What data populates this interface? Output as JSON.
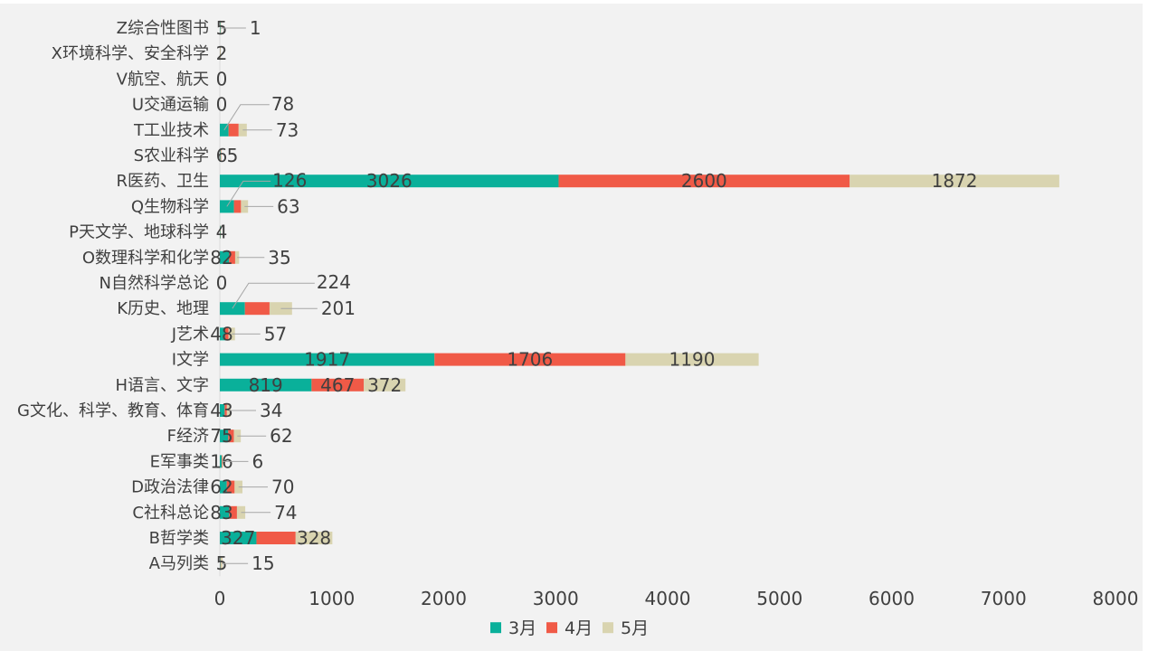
{
  "chart_data": {
    "type": "bar",
    "orientation": "horizontal",
    "stacked": true,
    "categories": [
      "A马列类",
      "B哲学类",
      "C社科总论",
      "D政治法律",
      "E军事类",
      "F经济",
      "G文化、科学、教育、体育",
      "H语言、文字",
      "I文学",
      "J艺术",
      "K历史、地理",
      "N自然科学总论",
      "O数理科学和化学",
      "P天文学、地球科学",
      "Q生物科学",
      "R医药、卫生",
      "S农业科学",
      "T工业技术",
      "U交通运输",
      "V航空、航天",
      "X环境科学、安全科学",
      "Z综合性图书"
    ],
    "series": [
      {
        "name": "3月",
        "color": "#0ab09a",
        "values": [
          5,
          327,
          83,
          62,
          16,
          75,
          43,
          819,
          1917,
          48,
          224,
          0,
          82,
          4,
          126,
          3026,
          6,
          78,
          0,
          0,
          2,
          5
        ]
      },
      {
        "name": "4月",
        "color": "#f05a47",
        "values": [
          5,
          350,
          70,
          70,
          6,
          50,
          20,
          467,
          1706,
          30,
          220,
          0,
          55,
          2,
          63,
          2600,
          5,
          90,
          0,
          0,
          1,
          1
        ]
      },
      {
        "name": "5月",
        "color": "#d9d4b0",
        "values": [
          15,
          328,
          74,
          70,
          6,
          62,
          34,
          372,
          1190,
          57,
          201,
          0,
          35,
          2,
          63,
          1872,
          3,
          73,
          0,
          0,
          1,
          1
        ]
      }
    ],
    "data_labels": [
      {
        "category": "A马列类",
        "labels": [
          {
            "text": "5",
            "series": 0
          },
          {
            "text": "15",
            "series": 2,
            "callout": true
          }
        ]
      },
      {
        "category": "B哲学类",
        "labels": [
          {
            "text": "327",
            "series": 0
          },
          {
            "text": "328",
            "series": 2
          }
        ]
      },
      {
        "category": "C社科总论",
        "labels": [
          {
            "text": "83",
            "series": 0
          },
          {
            "text": "74",
            "series": 2,
            "callout": true
          }
        ]
      },
      {
        "category": "D政治法律",
        "labels": [
          {
            "text": "62",
            "series": 0
          },
          {
            "text": "70",
            "series": 2,
            "callout": true
          }
        ]
      },
      {
        "category": "E军事类",
        "labels": [
          {
            "text": "16",
            "series": 0
          },
          {
            "text": "6",
            "series": 2,
            "callout": true
          }
        ]
      },
      {
        "category": "F经济",
        "labels": [
          {
            "text": "75",
            "series": 0
          },
          {
            "text": "62",
            "series": 2,
            "callout": true
          }
        ]
      },
      {
        "category": "G文化、科学、教育、体育",
        "labels": [
          {
            "text": "43",
            "series": 0
          },
          {
            "text": "34",
            "series": 2,
            "callout": true
          }
        ]
      },
      {
        "category": "H语言、文字",
        "labels": [
          {
            "text": "819",
            "series": 0
          },
          {
            "text": "467",
            "series": 1
          },
          {
            "text": "372",
            "series": 2
          }
        ]
      },
      {
        "category": "I文学",
        "labels": [
          {
            "text": "1917",
            "series": 0
          },
          {
            "text": "1706",
            "series": 1
          },
          {
            "text": "1190",
            "series": 2
          }
        ]
      },
      {
        "category": "J艺术",
        "labels": [
          {
            "text": "48",
            "series": 0
          },
          {
            "text": "57",
            "series": 2,
            "callout": true
          }
        ]
      },
      {
        "category": "K历史、地理",
        "labels": [
          {
            "text": "224",
            "series": 0,
            "callout": true
          },
          {
            "text": "201",
            "series": 2,
            "callout": true
          }
        ]
      },
      {
        "category": "N自然科学总论",
        "labels": [
          {
            "text": "0",
            "series": 0
          }
        ]
      },
      {
        "category": "O数理科学和化学",
        "labels": [
          {
            "text": "82",
            "series": 0
          },
          {
            "text": "35",
            "series": 2,
            "callout": true
          }
        ]
      },
      {
        "category": "P天文学、地球科学",
        "labels": [
          {
            "text": "4",
            "series": 0
          }
        ]
      },
      {
        "category": "Q生物科学",
        "labels": [
          {
            "text": "126",
            "series": 0,
            "callout": true
          },
          {
            "text": "63",
            "series": 2,
            "callout": true
          }
        ]
      },
      {
        "category": "R医药、卫生",
        "labels": [
          {
            "text": "3026",
            "series": 0
          },
          {
            "text": "2600",
            "series": 1
          },
          {
            "text": "1872",
            "series": 2
          }
        ]
      },
      {
        "category": "S农业科学",
        "labels": [
          {
            "text": "6",
            "series": 0
          },
          {
            "text": "5",
            "series": 1
          }
        ]
      },
      {
        "category": "T工业技术",
        "labels": [
          {
            "text": "78",
            "series": 0,
            "callout": true
          },
          {
            "text": "73",
            "series": 2,
            "callout": true
          }
        ]
      },
      {
        "category": "U交通运输",
        "labels": [
          {
            "text": "0",
            "series": 0
          }
        ]
      },
      {
        "category": "V航空、航天",
        "labels": [
          {
            "text": "0",
            "series": 0
          }
        ]
      },
      {
        "category": "X环境科学、安全科学",
        "labels": [
          {
            "text": "2",
            "series": 0
          }
        ]
      },
      {
        "category": "Z综合性图书",
        "labels": [
          {
            "text": "5",
            "series": 0
          },
          {
            "text": "1",
            "series": 2,
            "callout": true
          }
        ]
      }
    ],
    "x_ticks": [
      "0",
      "1000",
      "2000",
      "3000",
      "4000",
      "5000",
      "6000",
      "7000",
      "8000"
    ],
    "xlim": [
      0,
      8000
    ],
    "title": "",
    "xlabel": "",
    "ylabel": "",
    "grid": false,
    "legend_position": "bottom"
  }
}
